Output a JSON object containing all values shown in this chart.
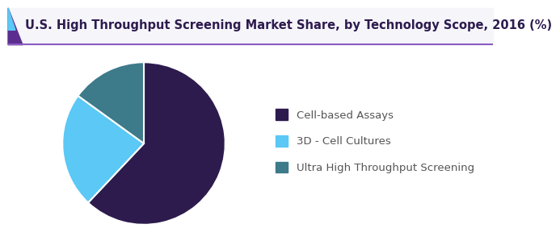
{
  "title": "U.S. High Throughput Screening Market Share, by Technology Scope, 2016 (%)",
  "slices": [
    {
      "label": "Cell-based Assays",
      "value": 62,
      "color": "#2d1b4e"
    },
    {
      "label": "3D - Cell Cultures",
      "value": 23,
      "color": "#5bc8f5"
    },
    {
      "label": "Ultra High Throughput Screening",
      "value": 15,
      "color": "#3d7a8a"
    }
  ],
  "title_fontsize": 10.5,
  "legend_fontsize": 9.5,
  "background_color": "#ffffff",
  "title_bg_color": "#f5f5fa",
  "title_text_color": "#2d1b4e",
  "title_accent_left_color": "#5b2d8e",
  "title_line_color": "#8b5bbf",
  "startangle": 90,
  "wedge_edgecolor": "#ffffff",
  "wedge_linewidth": 1.5
}
